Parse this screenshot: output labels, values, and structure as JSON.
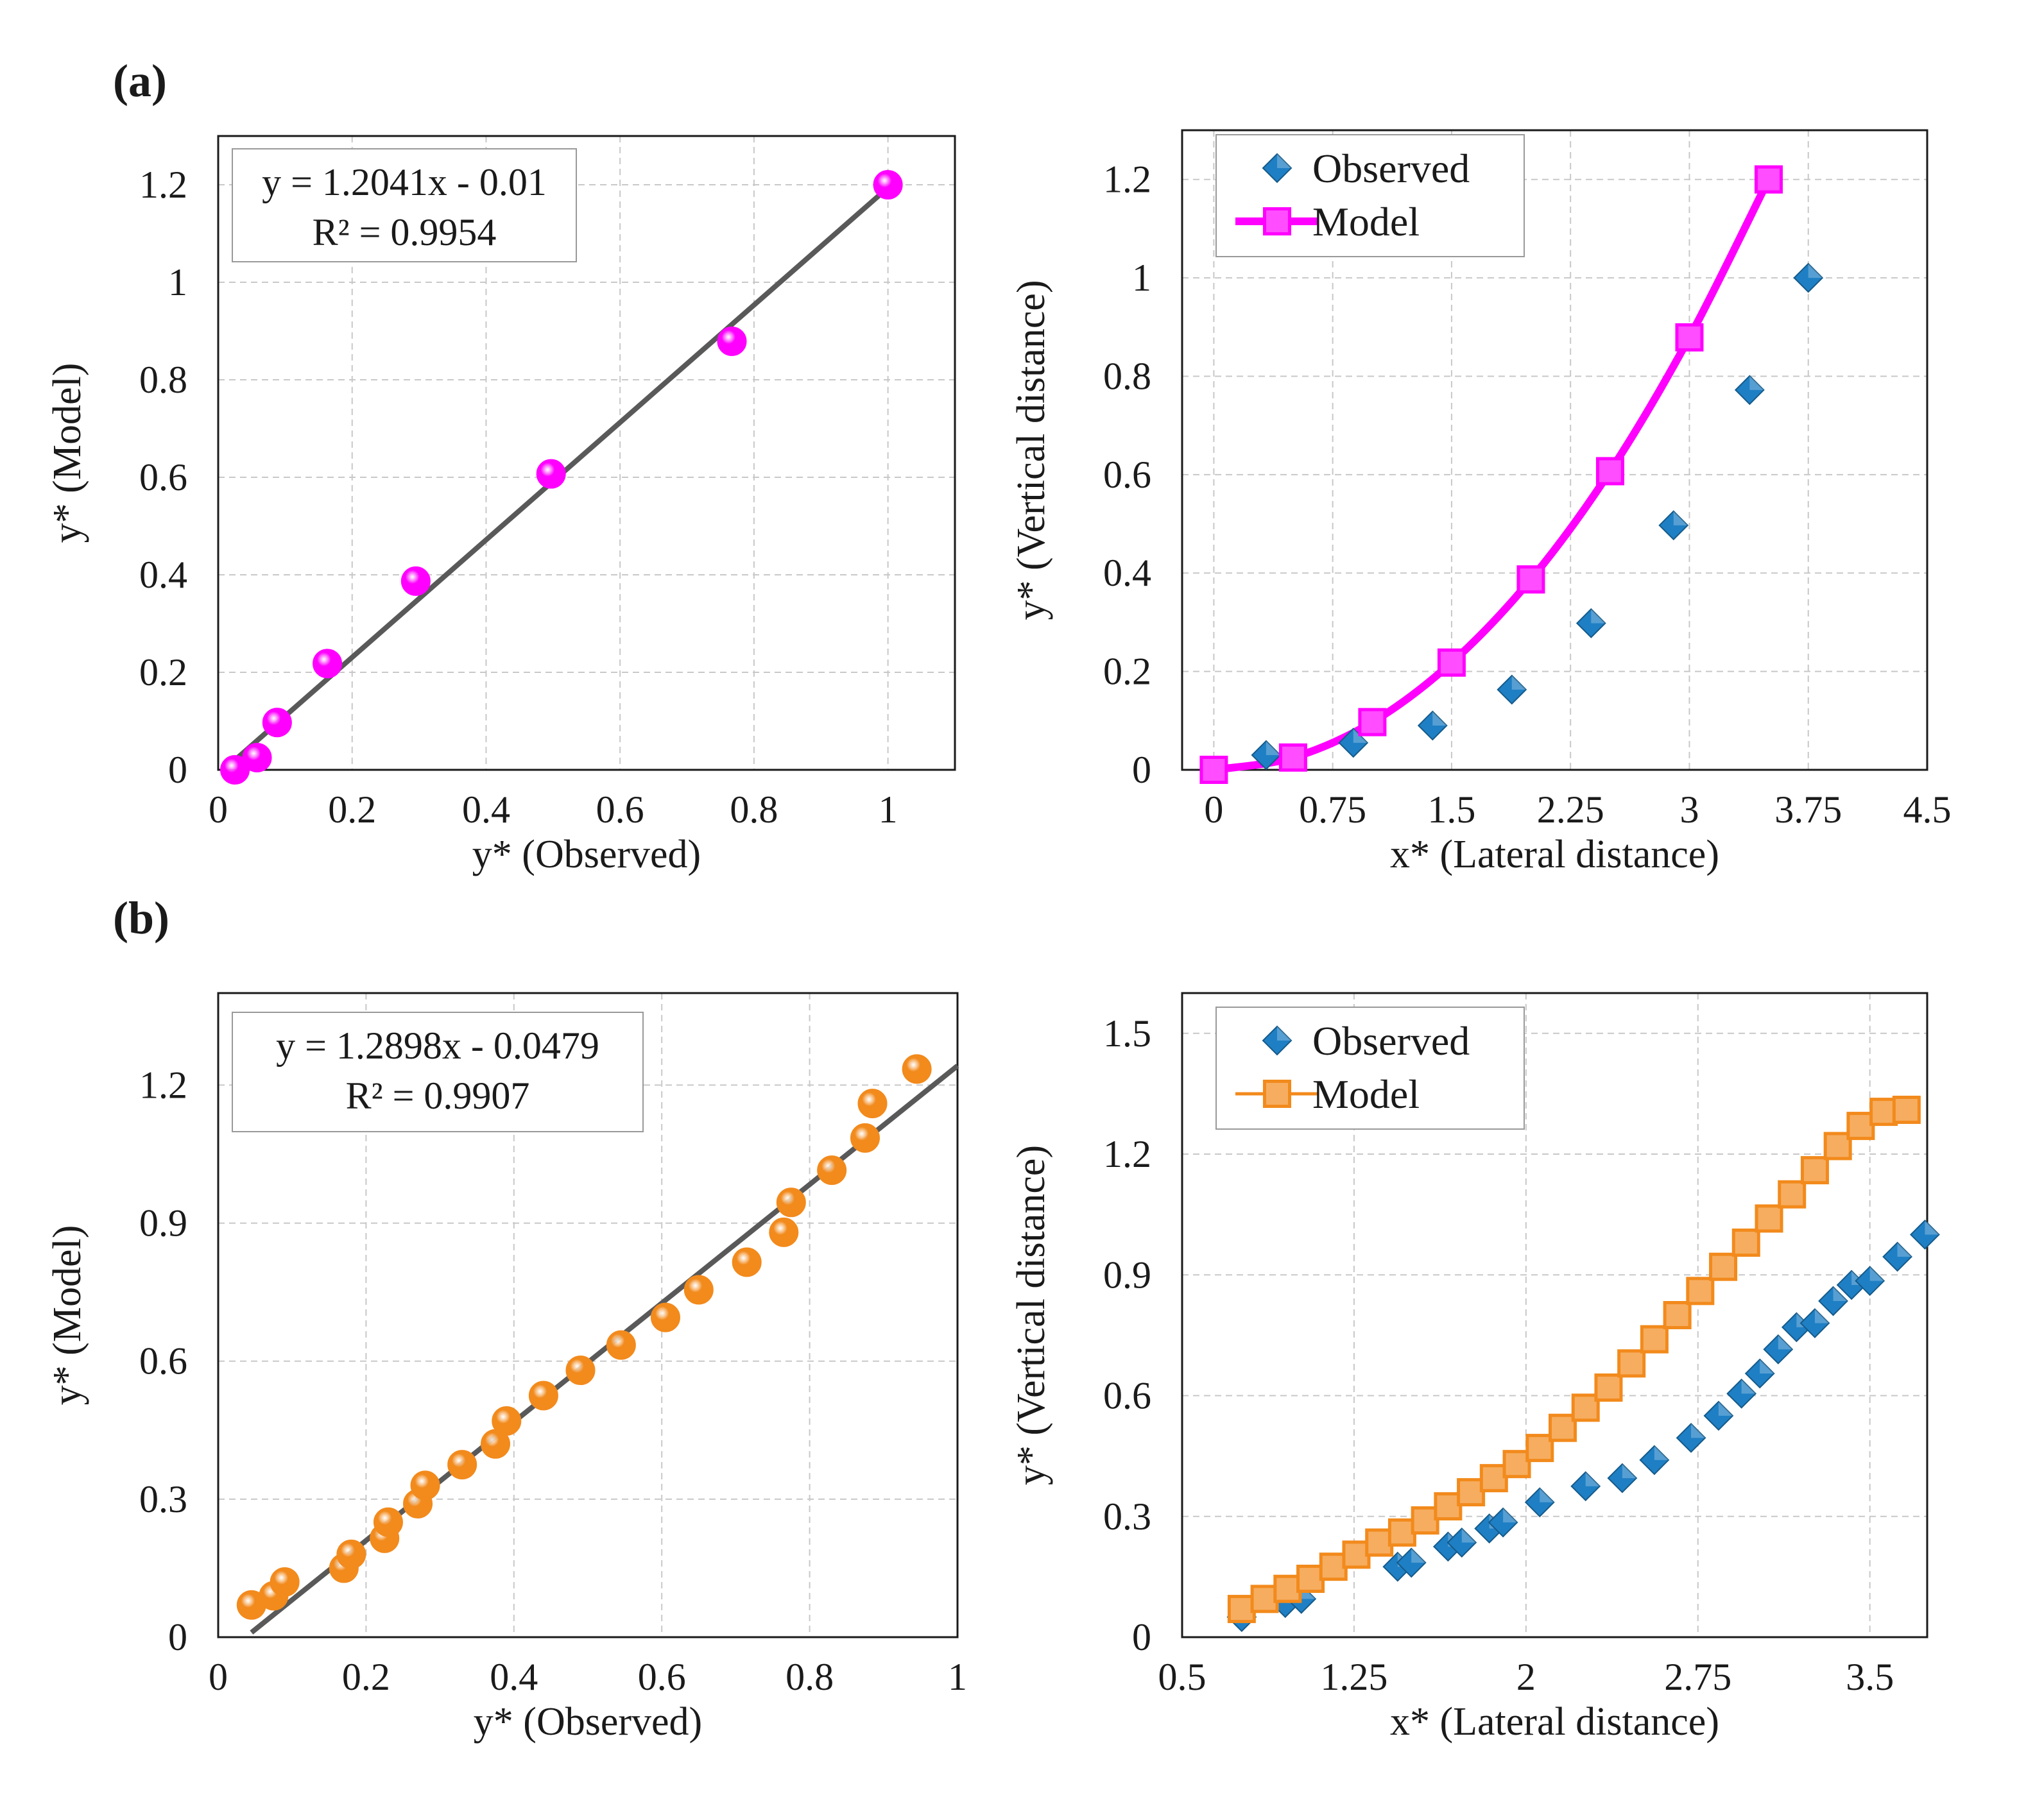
{
  "colors": {
    "magenta": "#ff00ff",
    "orange": "#f28a1c",
    "blue": "#1f7fc4",
    "fit_line": "#595959",
    "grid": "#c8c8c8",
    "frame": "#1a1a1a"
  },
  "panels": {
    "a_label": "(a)",
    "b_label": "(b)"
  },
  "chart_data": [
    {
      "type": "scatter",
      "panel": "a-left",
      "marker": "circle",
      "color": "magenta",
      "xlabel": "y* (Observed)",
      "ylabel": "y* (Model)",
      "xlim": [
        0,
        1.1
      ],
      "ylim": [
        0,
        1.3
      ],
      "xticks": [
        "0",
        "0.2",
        "0.4",
        "0.6",
        "0.8",
        "1"
      ],
      "yticks": [
        "0",
        "0.2",
        "0.4",
        "0.6",
        "0.8",
        "1",
        "1.2"
      ],
      "grid": true,
      "equation": "y = 1.2041x - 0.01",
      "r2": "R² = 0.9954",
      "fit": {
        "slope": 1.2041,
        "intercept": -0.01,
        "x_range": [
          0.025,
          1.0
        ]
      },
      "series": [
        {
          "x": [
            0.025,
            0.058,
            0.088,
            0.163,
            0.295,
            0.497,
            0.767,
            1.0
          ],
          "y": [
            0.0,
            0.025,
            0.097,
            0.218,
            0.387,
            0.607,
            0.879,
            1.2
          ]
        }
      ]
    },
    {
      "type": "line",
      "panel": "a-right",
      "xlabel": "x* (Lateral distance)",
      "ylabel": "y* (Vertical distance)",
      "xlim": [
        -0.2,
        4.5
      ],
      "ylim": [
        0,
        1.3
      ],
      "xticks": [
        "0",
        "0.75",
        "1.5",
        "2.25",
        "3",
        "3.75",
        "4.5"
      ],
      "yticks": [
        "0",
        "0.2",
        "0.4",
        "0.6",
        "0.8",
        "1",
        "1.2"
      ],
      "grid": true,
      "legend": "top-left",
      "series": [
        {
          "name": "Observed",
          "marker": "diamond",
          "color": "blue",
          "x": [
            0.33,
            0.88,
            1.38,
            1.88,
            2.38,
            2.9,
            3.38,
            3.75
          ],
          "y": [
            0.03,
            0.055,
            0.09,
            0.163,
            0.298,
            0.497,
            0.772,
            1.0
          ]
        },
        {
          "name": "Model",
          "marker": "square",
          "color": "magenta",
          "x": [
            0,
            0.5,
            1.0,
            1.5,
            2.0,
            2.5,
            3.0,
            3.5
          ],
          "y": [
            0.0,
            0.025,
            0.097,
            0.218,
            0.387,
            0.607,
            0.879,
            1.2
          ]
        }
      ]
    },
    {
      "type": "scatter",
      "panel": "b-left",
      "marker": "circle",
      "color": "orange",
      "xlabel": "y* (Observed)",
      "ylabel": "y* (Model)",
      "xlim": [
        0,
        1
      ],
      "ylim": [
        0,
        1.4
      ],
      "xticks": [
        "0",
        "0.2",
        "0.4",
        "0.6",
        "0.8",
        "1"
      ],
      "yticks": [
        "0",
        "0.3",
        "0.6",
        "0.9",
        "1.2"
      ],
      "grid": true,
      "equation": "y = 1.2898x - 0.0479",
      "r2": "R² = 0.9907",
      "fit": {
        "slope": 1.2898,
        "intercept": -0.0479,
        "x_range": [
          0.045,
          1.0
        ]
      },
      "series": [
        {
          "x": [
            0.045,
            0.075,
            0.09,
            0.17,
            0.18,
            0.225,
            0.23,
            0.27,
            0.28,
            0.33,
            0.375,
            0.39,
            0.44,
            0.49,
            0.545,
            0.605,
            0.65,
            0.715,
            0.765,
            0.775,
            0.83,
            0.875,
            0.885,
            0.945
          ],
          "y": [
            0.07,
            0.09,
            0.12,
            0.15,
            0.18,
            0.215,
            0.25,
            0.29,
            0.33,
            0.375,
            0.42,
            0.47,
            0.525,
            0.58,
            0.635,
            0.695,
            0.755,
            0.815,
            0.88,
            0.945,
            1.015,
            1.085,
            1.16,
            1.235
          ]
        }
      ]
    },
    {
      "type": "line",
      "panel": "b-right",
      "xlabel": "x* (Lateral distance)",
      "ylabel": "y* (Vertical distance)",
      "xlim": [
        0.5,
        3.75
      ],
      "ylim": [
        0,
        1.6
      ],
      "xticks": [
        "0.5",
        "1.25",
        "2",
        "2.75",
        "3.5"
      ],
      "yticks": [
        "0",
        "0.3",
        "0.6",
        "0.9",
        "1.2",
        "1.5"
      ],
      "grid": true,
      "legend": "top-left",
      "series": [
        {
          "name": "Observed",
          "marker": "diamond",
          "color": "blue",
          "x": [
            0.76,
            0.95,
            1.02,
            1.44,
            1.5,
            1.66,
            1.72,
            1.84,
            1.9,
            2.06,
            2.26,
            2.42,
            2.56,
            2.72,
            2.84,
            2.94,
            3.02,
            3.1,
            3.18,
            3.26,
            3.34,
            3.42,
            3.5,
            3.62,
            3.74
          ],
          "y": [
            0.05,
            0.085,
            0.095,
            0.175,
            0.185,
            0.225,
            0.235,
            0.27,
            0.285,
            0.335,
            0.375,
            0.395,
            0.44,
            0.495,
            0.55,
            0.605,
            0.655,
            0.715,
            0.77,
            0.78,
            0.835,
            0.875,
            0.885,
            0.945,
            1.0
          ]
        },
        {
          "name": "Model",
          "marker": "square",
          "color": "orange",
          "x": [
            0.76,
            0.86,
            0.96,
            1.06,
            1.16,
            1.26,
            1.36,
            1.46,
            1.56,
            1.66,
            1.76,
            1.86,
            1.96,
            2.06,
            2.16,
            2.26,
            2.36,
            2.46,
            2.56,
            2.66,
            2.76,
            2.86,
            2.96,
            3.06,
            3.16,
            3.26,
            3.36,
            3.46,
            3.56,
            3.66
          ],
          "y": [
            0.07,
            0.095,
            0.12,
            0.145,
            0.175,
            0.205,
            0.235,
            0.26,
            0.29,
            0.325,
            0.36,
            0.395,
            0.43,
            0.47,
            0.52,
            0.57,
            0.62,
            0.68,
            0.74,
            0.8,
            0.86,
            0.92,
            0.98,
            1.04,
            1.1,
            1.16,
            1.22,
            1.27,
            1.305,
            1.31
          ]
        }
      ]
    }
  ]
}
